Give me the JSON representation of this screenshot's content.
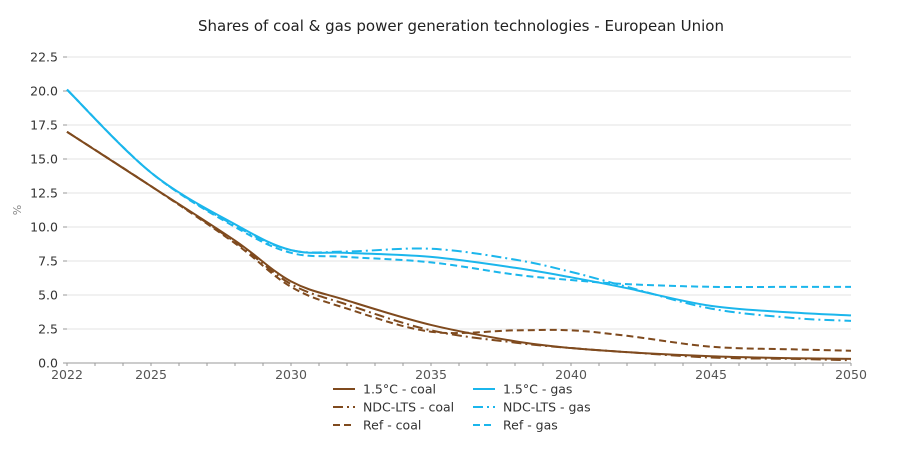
{
  "chart_data": {
    "type": "line",
    "title": "Shares of coal & gas power generation technologies - European Union",
    "xlabel": "",
    "ylabel": "%",
    "xlim": [
      2022,
      2050
    ],
    "ylim": [
      0,
      22.5
    ],
    "grid": true,
    "legend_position": "bottom",
    "x_ticks": [
      "2022",
      "2025",
      "2030",
      "2035",
      "2040",
      "2045",
      "2050"
    ],
    "y_ticks": [
      "0.0",
      "2.5",
      "5.0",
      "7.5",
      "10.0",
      "12.5",
      "15.0",
      "17.5",
      "20.0",
      "22.5"
    ],
    "x": [
      2022,
      2025,
      2028,
      2030,
      2032,
      2035,
      2038,
      2040,
      2042,
      2045,
      2048,
      2050
    ],
    "series": [
      {
        "name": "1.5°C - coal",
        "color": "#7f4a1e",
        "dash": "solid",
        "values": [
          17.0,
          13.0,
          9.0,
          6.0,
          4.6,
          2.8,
          1.6,
          1.1,
          0.8,
          0.5,
          0.35,
          0.3
        ]
      },
      {
        "name": "NDC-LTS - coal",
        "color": "#7f4a1e",
        "dash": "dashdot",
        "values": [
          17.0,
          13.0,
          8.9,
          5.8,
          4.3,
          2.4,
          1.5,
          1.1,
          0.8,
          0.4,
          0.3,
          0.2
        ]
      },
      {
        "name": "Ref - coal",
        "color": "#7f4a1e",
        "dash": "dashed",
        "values": [
          17.0,
          13.0,
          8.8,
          5.6,
          4.0,
          2.3,
          2.4,
          2.4,
          2.0,
          1.2,
          1.0,
          0.9
        ]
      },
      {
        "name": "1.5°C - gas",
        "color": "#1bb6ec",
        "dash": "solid",
        "values": [
          20.1,
          14.0,
          10.2,
          8.3,
          8.1,
          7.8,
          7.0,
          6.3,
          5.5,
          4.2,
          3.7,
          3.5
        ]
      },
      {
        "name": "NDC-LTS - gas",
        "color": "#1bb6ec",
        "dash": "dashdot",
        "values": [
          20.1,
          14.0,
          10.1,
          8.3,
          8.2,
          8.4,
          7.6,
          6.7,
          5.6,
          4.0,
          3.3,
          3.1
        ]
      },
      {
        "name": "Ref - gas",
        "color": "#1bb6ec",
        "dash": "dashed",
        "values": [
          20.1,
          14.0,
          10.0,
          8.1,
          7.8,
          7.4,
          6.5,
          6.1,
          5.8,
          5.6,
          5.6,
          5.6
        ]
      }
    ]
  }
}
